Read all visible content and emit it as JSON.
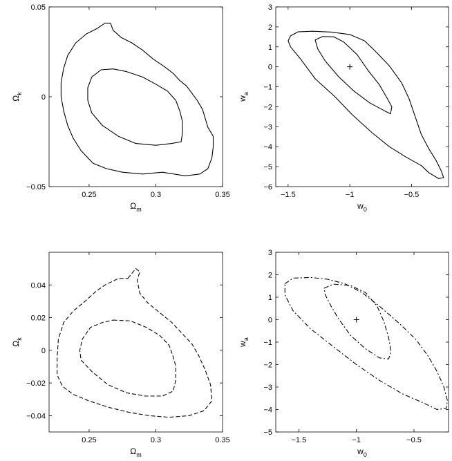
{
  "chart_data": [
    {
      "type": "contour",
      "xlabel": "Ω",
      "xlabel_sub": "m",
      "ylabel": "Ω",
      "ylabel_sub": "k",
      "xlim": [
        0.22,
        0.35
      ],
      "ylim": [
        -0.05,
        0.05
      ],
      "xticks": [
        0.25,
        0.3,
        0.35
      ],
      "xtick_labels": [
        "0.25",
        "0.3",
        "0.35"
      ],
      "yticks": [
        -0.05,
        0,
        0.05
      ],
      "ytick_labels": [
        "−0.05",
        "0",
        "0.05"
      ],
      "line_style": "solid",
      "contours": [
        {
          "points": [
            [
              0.262,
              0.041
            ],
            [
              0.266,
              0.041
            ],
            [
              0.268,
              0.037
            ],
            [
              0.274,
              0.033
            ],
            [
              0.282,
              0.03
            ],
            [
              0.29,
              0.026
            ],
            [
              0.298,
              0.021
            ],
            [
              0.306,
              0.017
            ],
            [
              0.313,
              0.013
            ],
            [
              0.318,
              0.009
            ],
            [
              0.323,
              0.006
            ],
            [
              0.327,
              0.002
            ],
            [
              0.331,
              -0.002
            ],
            [
              0.335,
              -0.007
            ],
            [
              0.337,
              -0.012
            ],
            [
              0.339,
              -0.017
            ],
            [
              0.343,
              -0.022
            ],
            [
              0.343,
              -0.028
            ],
            [
              0.342,
              -0.034
            ],
            [
              0.339,
              -0.04
            ],
            [
              0.333,
              -0.043
            ],
            [
              0.322,
              -0.044
            ],
            [
              0.305,
              -0.042
            ],
            [
              0.29,
              -0.043
            ],
            [
              0.275,
              -0.042
            ],
            [
              0.263,
              -0.04
            ],
            [
              0.253,
              -0.037
            ],
            [
              0.244,
              -0.03
            ],
            [
              0.238,
              -0.023
            ],
            [
              0.234,
              -0.016
            ],
            [
              0.231,
              -0.008
            ],
            [
              0.229,
              0.0
            ],
            [
              0.229,
              0.008
            ],
            [
              0.231,
              0.016
            ],
            [
              0.234,
              0.023
            ],
            [
              0.24,
              0.03
            ],
            [
              0.248,
              0.035
            ],
            [
              0.256,
              0.038
            ],
            [
              0.262,
              0.041
            ]
          ]
        },
        {
          "points": [
            [
              0.268,
              0.0155
            ],
            [
              0.278,
              0.014
            ],
            [
              0.29,
              0.011
            ],
            [
              0.3,
              0.007
            ],
            [
              0.309,
              0.003
            ],
            [
              0.315,
              -0.002
            ],
            [
              0.318,
              -0.008
            ],
            [
              0.32,
              -0.014
            ],
            [
              0.32,
              -0.02
            ],
            [
              0.319,
              -0.025
            ],
            [
              0.312,
              -0.026
            ],
            [
              0.3,
              -0.027
            ],
            [
              0.285,
              -0.026
            ],
            [
              0.272,
              -0.022
            ],
            [
              0.26,
              -0.016
            ],
            [
              0.252,
              -0.009
            ],
            [
              0.249,
              -0.002
            ],
            [
              0.249,
              0.005
            ],
            [
              0.252,
              0.011
            ],
            [
              0.259,
              0.015
            ],
            [
              0.268,
              0.0155
            ]
          ]
        }
      ]
    },
    {
      "type": "contour",
      "xlabel": "w",
      "xlabel_sub": "0",
      "ylabel": "w",
      "ylabel_sub": "a",
      "xlim": [
        -1.6,
        -0.2
      ],
      "ylim": [
        -6,
        3
      ],
      "xticks": [
        -1.5,
        -1,
        -0.5
      ],
      "xtick_labels": [
        "−1.5",
        "−1",
        "−0.5"
      ],
      "yticks": [
        -6,
        -5,
        -4,
        -3,
        -2,
        -1,
        0,
        1,
        2,
        3
      ],
      "ytick_labels": [
        "−6",
        "−5",
        "−4",
        "−3",
        "−2",
        "−1",
        "0",
        "1",
        "2",
        "3"
      ],
      "line_style": "solid",
      "marker": [
        -1,
        0
      ],
      "contours": [
        {
          "points": [
            [
              -1.48,
              1.55
            ],
            [
              -1.42,
              1.75
            ],
            [
              -1.3,
              1.78
            ],
            [
              -1.15,
              1.74
            ],
            [
              -1.0,
              1.62
            ],
            [
              -0.88,
              1.3
            ],
            [
              -0.78,
              0.7
            ],
            [
              -0.68,
              0.05
            ],
            [
              -0.58,
              -0.8
            ],
            [
              -0.52,
              -1.6
            ],
            [
              -0.47,
              -2.5
            ],
            [
              -0.42,
              -3.4
            ],
            [
              -0.36,
              -4.1
            ],
            [
              -0.3,
              -4.7
            ],
            [
              -0.26,
              -5.2
            ],
            [
              -0.24,
              -5.55
            ],
            [
              -0.28,
              -5.6
            ],
            [
              -0.36,
              -5.3
            ],
            [
              -0.42,
              -4.95
            ],
            [
              -0.55,
              -4.5
            ],
            [
              -0.68,
              -4.0
            ],
            [
              -0.82,
              -3.3
            ],
            [
              -0.98,
              -2.4
            ],
            [
              -1.12,
              -1.5
            ],
            [
              -1.28,
              -0.6
            ],
            [
              -1.4,
              0.4
            ],
            [
              -1.48,
              1.0
            ],
            [
              -1.5,
              1.3
            ],
            [
              -1.48,
              1.55
            ]
          ]
        },
        {
          "points": [
            [
              -1.28,
              1.35
            ],
            [
              -1.22,
              1.52
            ],
            [
              -1.13,
              1.5
            ],
            [
              -1.05,
              1.25
            ],
            [
              -0.94,
              0.6
            ],
            [
              -0.85,
              -0.2
            ],
            [
              -0.76,
              -0.9
            ],
            [
              -0.7,
              -1.55
            ],
            [
              -0.66,
              -2.0
            ],
            [
              -0.67,
              -2.35
            ],
            [
              -0.72,
              -2.2
            ],
            [
              -0.84,
              -1.8
            ],
            [
              -0.97,
              -1.2
            ],
            [
              -1.09,
              -0.5
            ],
            [
              -1.2,
              0.3
            ],
            [
              -1.26,
              0.9
            ],
            [
              -1.28,
              1.35
            ]
          ]
        }
      ]
    },
    {
      "type": "contour",
      "xlabel": "Ω",
      "xlabel_sub": "m",
      "ylabel": "Ω",
      "ylabel_sub": "k",
      "xlim": [
        0.22,
        0.35
      ],
      "ylim": [
        -0.05,
        0.06
      ],
      "xticks": [
        0.25,
        0.3,
        0.35
      ],
      "xtick_labels": [
        "0.25",
        "0.3",
        "0.35"
      ],
      "yticks": [
        -0.04,
        -0.02,
        0,
        0.02,
        0.04
      ],
      "ytick_labels": [
        "−0.04",
        "−0.02",
        "0",
        "0.02",
        "0.04"
      ],
      "line_style": "dashed",
      "contours": [
        {
          "points": [
            [
              0.279,
              0.044
            ],
            [
              0.285,
              0.05
            ],
            [
              0.288,
              0.048
            ],
            [
              0.286,
              0.043
            ],
            [
              0.288,
              0.035
            ],
            [
              0.294,
              0.029
            ],
            [
              0.303,
              0.023
            ],
            [
              0.312,
              0.017
            ],
            [
              0.32,
              0.01
            ],
            [
              0.327,
              0.004
            ],
            [
              0.332,
              -0.003
            ],
            [
              0.337,
              -0.012
            ],
            [
              0.341,
              -0.021
            ],
            [
              0.342,
              -0.031
            ],
            [
              0.336,
              -0.037
            ],
            [
              0.325,
              -0.04
            ],
            [
              0.31,
              -0.041
            ],
            [
              0.295,
              -0.04
            ],
            [
              0.28,
              -0.038
            ],
            [
              0.265,
              -0.035
            ],
            [
              0.25,
              -0.031
            ],
            [
              0.238,
              -0.027
            ],
            [
              0.23,
              -0.022
            ],
            [
              0.226,
              -0.015
            ],
            [
              0.226,
              -0.005
            ],
            [
              0.227,
              0.007
            ],
            [
              0.231,
              0.017
            ],
            [
              0.238,
              0.024
            ],
            [
              0.247,
              0.03
            ],
            [
              0.255,
              0.036
            ],
            [
              0.262,
              0.04
            ],
            [
              0.272,
              0.044
            ],
            [
              0.279,
              0.044
            ]
          ]
        },
        {
          "points": [
            [
              0.268,
              0.0185
            ],
            [
              0.281,
              0.018
            ],
            [
              0.293,
              0.014
            ],
            [
              0.303,
              0.009
            ],
            [
              0.31,
              0.003
            ],
            [
              0.313,
              -0.004
            ],
            [
              0.315,
              -0.01
            ],
            [
              0.315,
              -0.018
            ],
            [
              0.313,
              -0.025
            ],
            [
              0.305,
              -0.028
            ],
            [
              0.292,
              -0.028
            ],
            [
              0.278,
              -0.026
            ],
            [
              0.264,
              -0.021
            ],
            [
              0.252,
              -0.013
            ],
            [
              0.244,
              -0.006
            ],
            [
              0.243,
              0.0
            ],
            [
              0.245,
              0.007
            ],
            [
              0.251,
              0.014
            ],
            [
              0.26,
              0.017
            ],
            [
              0.268,
              0.0185
            ]
          ]
        }
      ]
    },
    {
      "type": "contour",
      "xlabel": "w",
      "xlabel_sub": "0",
      "ylabel": "w",
      "ylabel_sub": "a",
      "xlim": [
        -1.7,
        -0.2
      ],
      "ylim": [
        -5,
        3
      ],
      "xticks": [
        -1.5,
        -1,
        -0.5
      ],
      "xtick_labels": [
        "−1.5",
        "−1",
        "−0.5"
      ],
      "yticks": [
        -5,
        -4,
        -3,
        -2,
        -1,
        0,
        1,
        2,
        3
      ],
      "ytick_labels": [
        "−5",
        "−4",
        "−3",
        "−2",
        "−1",
        "0",
        "1",
        "2",
        "3"
      ],
      "line_style": "dash-dot",
      "marker": [
        -1,
        0
      ],
      "contours": [
        {
          "points": [
            [
              -1.62,
              1.6
            ],
            [
              -1.55,
              1.85
            ],
            [
              -1.4,
              1.88
            ],
            [
              -1.25,
              1.8
            ],
            [
              -1.1,
              1.6
            ],
            [
              -0.95,
              1.2
            ],
            [
              -0.8,
              0.6
            ],
            [
              -0.62,
              -0.2
            ],
            [
              -0.48,
              -0.9
            ],
            [
              -0.38,
              -1.6
            ],
            [
              -0.3,
              -2.3
            ],
            [
              -0.24,
              -3.0
            ],
            [
              -0.21,
              -3.6
            ],
            [
              -0.22,
              -3.95
            ],
            [
              -0.3,
              -4.0
            ],
            [
              -0.42,
              -3.7
            ],
            [
              -0.6,
              -3.3
            ],
            [
              -0.8,
              -2.7
            ],
            [
              -1.0,
              -2.0
            ],
            [
              -1.2,
              -1.2
            ],
            [
              -1.4,
              -0.4
            ],
            [
              -1.55,
              0.4
            ],
            [
              -1.62,
              1.1
            ],
            [
              -1.62,
              1.6
            ]
          ]
        },
        {
          "points": [
            [
              -1.28,
              1.4
            ],
            [
              -1.2,
              1.58
            ],
            [
              -1.05,
              1.52
            ],
            [
              -0.92,
              1.2
            ],
            [
              -0.82,
              0.6
            ],
            [
              -0.76,
              -0.1
            ],
            [
              -0.72,
              -0.8
            ],
            [
              -0.7,
              -1.4
            ],
            [
              -0.72,
              -1.75
            ],
            [
              -0.8,
              -1.7
            ],
            [
              -0.92,
              -1.3
            ],
            [
              -1.05,
              -0.7
            ],
            [
              -1.15,
              0.0
            ],
            [
              -1.22,
              0.6
            ],
            [
              -1.27,
              1.1
            ],
            [
              -1.28,
              1.4
            ]
          ]
        }
      ]
    }
  ]
}
